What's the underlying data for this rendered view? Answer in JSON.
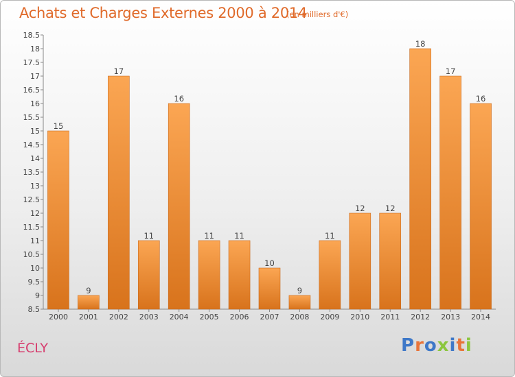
{
  "title": "Achats et Charges Externes 2000 à 2014",
  "subtitle": "(en milliers d'€)",
  "commune": "ÉCLY",
  "logo": {
    "text": "Proxiti",
    "colors": [
      "#3e78c8",
      "#e8743a",
      "#3e78c8",
      "#8cc63f",
      "#3e78c8",
      "#e8743a",
      "#8cc63f"
    ]
  },
  "colors": {
    "title": "#e06a2a",
    "commune": "#d63d6e",
    "bar_top": "#fba653",
    "bar_bottom": "#d8731c"
  },
  "chart_data": {
    "type": "bar",
    "title": "Achats et Charges Externes 2000 à 2014",
    "subtitle": "(en milliers d'€)",
    "categories": [
      "2000",
      "2001",
      "2002",
      "2003",
      "2004",
      "2005",
      "2006",
      "2007",
      "2008",
      "2009",
      "2010",
      "2011",
      "2012",
      "2013",
      "2014"
    ],
    "values": [
      15,
      9,
      17,
      11,
      16,
      11,
      11,
      10,
      9,
      11,
      12,
      12,
      18,
      17,
      16
    ],
    "data_labels": [
      "15",
      "9",
      "17",
      "11",
      "16",
      "11",
      "11",
      "10",
      "9",
      "11",
      "12",
      "12",
      "18",
      "17",
      "16"
    ],
    "ylim": [
      8.5,
      18.5
    ],
    "yticks": [
      "8.5",
      "9",
      "9.5",
      "10",
      "10.5",
      "11",
      "11.5",
      "12",
      "12.5",
      "13",
      "13.5",
      "14",
      "14.5",
      "15",
      "15.5",
      "16",
      "16.5",
      "17",
      "17.5",
      "18",
      "18.5"
    ],
    "grid": false,
    "legend": "none"
  }
}
